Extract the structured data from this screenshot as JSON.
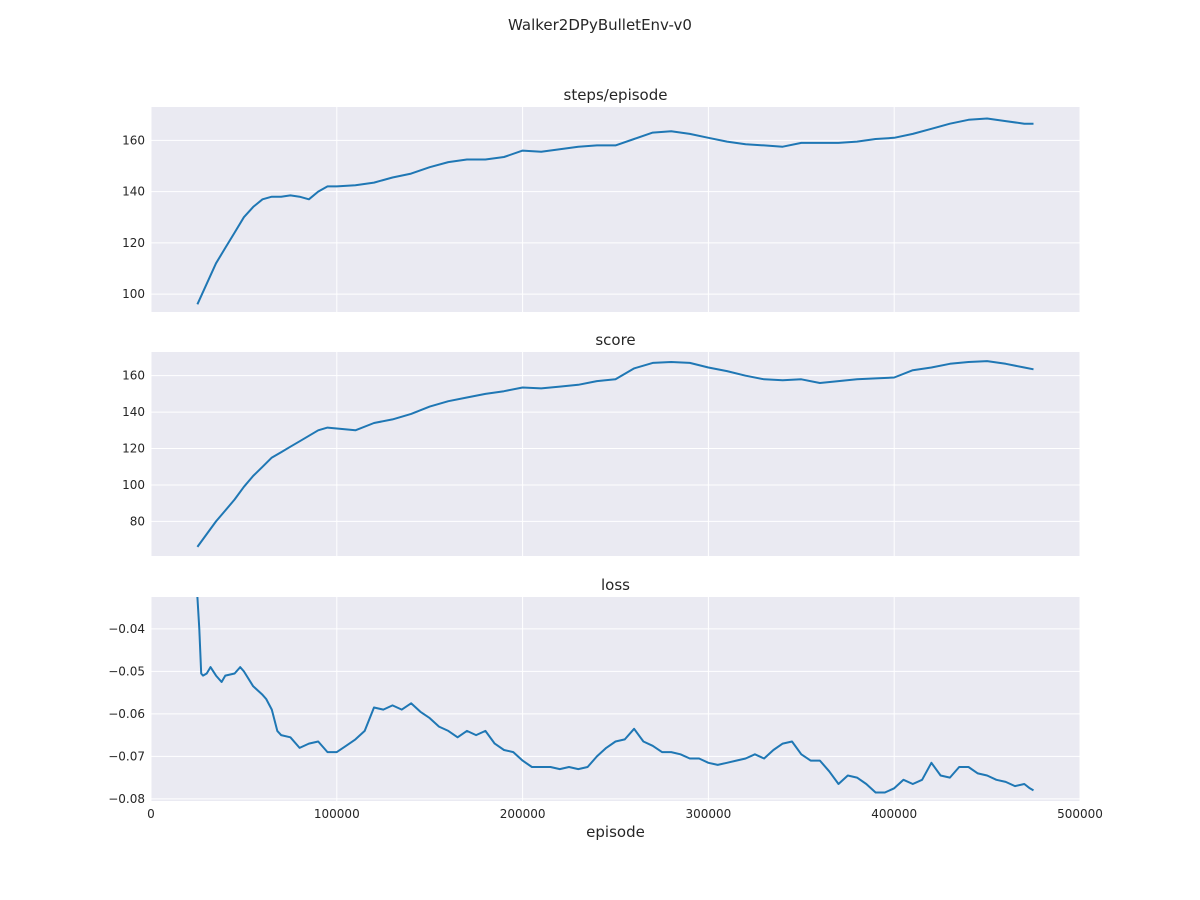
{
  "figure": {
    "title": "Walker2DPyBulletEnv-v0"
  },
  "colors": {
    "line": "#1f77b4",
    "plot_bg": "#eaeaf2",
    "grid": "#ffffff",
    "text": "#262626"
  },
  "chart_data": [
    {
      "type": "line",
      "title": "steps/episode",
      "xlabel": "",
      "ylabel": "",
      "xlim": [
        0,
        500000
      ],
      "ylim": [
        93,
        173
      ],
      "yticks": [
        100,
        120,
        140,
        160
      ],
      "ytick_labels": [
        "100",
        "120",
        "140",
        "160"
      ],
      "xtick_labels": [],
      "grid": true,
      "series": [
        {
          "x": [
            25000,
            30000,
            35000,
            40000,
            45000,
            50000,
            55000,
            60000,
            65000,
            70000,
            75000,
            80000,
            85000,
            90000,
            95000,
            100000,
            110000,
            120000,
            130000,
            140000,
            150000,
            160000,
            170000,
            180000,
            190000,
            200000,
            210000,
            220000,
            230000,
            240000,
            250000,
            260000,
            270000,
            280000,
            290000,
            300000,
            310000,
            320000,
            330000,
            340000,
            350000,
            360000,
            370000,
            380000,
            390000,
            400000,
            410000,
            420000,
            430000,
            440000,
            450000,
            460000,
            470000,
            475000
          ],
          "y": [
            96,
            104,
            112,
            118,
            124,
            130,
            134,
            137,
            138,
            138,
            138.5,
            138,
            137,
            140,
            142,
            142,
            142.5,
            143.5,
            145.5,
            147,
            149.5,
            151.5,
            152.5,
            152.5,
            153.5,
            156,
            155.5,
            156.5,
            157.5,
            158,
            158,
            160.5,
            163,
            163.5,
            162.5,
            161,
            159.5,
            158.5,
            158,
            157.5,
            159,
            159,
            159,
            159.5,
            160.5,
            161,
            162.5,
            164.5,
            166.5,
            168,
            168.5,
            167.5,
            166.5,
            166.5
          ]
        }
      ]
    },
    {
      "type": "line",
      "title": "score",
      "xlabel": "",
      "ylabel": "",
      "xlim": [
        0,
        500000
      ],
      "ylim": [
        61,
        173
      ],
      "yticks": [
        80,
        100,
        120,
        140,
        160
      ],
      "ytick_labels": [
        "80",
        "100",
        "120",
        "140",
        "160"
      ],
      "xtick_labels": [],
      "grid": true,
      "series": [
        {
          "x": [
            25000,
            30000,
            35000,
            40000,
            45000,
            50000,
            55000,
            60000,
            65000,
            70000,
            75000,
            80000,
            85000,
            90000,
            95000,
            100000,
            110000,
            120000,
            130000,
            140000,
            150000,
            160000,
            170000,
            180000,
            190000,
            200000,
            210000,
            220000,
            230000,
            240000,
            250000,
            260000,
            270000,
            280000,
            290000,
            300000,
            310000,
            320000,
            330000,
            340000,
            350000,
            360000,
            370000,
            380000,
            390000,
            400000,
            410000,
            420000,
            430000,
            440000,
            450000,
            460000,
            470000,
            475000
          ],
          "y": [
            66,
            73,
            80,
            86,
            92,
            99,
            105,
            110,
            115,
            118,
            121,
            124,
            127,
            130,
            131.5,
            131,
            130,
            134,
            136,
            139,
            143,
            146,
            148,
            150,
            151.5,
            153.5,
            153,
            154,
            155,
            157,
            158,
            164,
            167,
            167.5,
            167,
            164.5,
            162.5,
            160,
            158,
            157.5,
            158,
            156,
            157,
            158,
            158.5,
            159,
            163,
            164.5,
            166.5,
            167.5,
            168,
            166.5,
            164.5,
            163.5
          ]
        }
      ]
    },
    {
      "type": "line",
      "title": "loss",
      "xlabel": "episode",
      "ylabel": "",
      "xlim": [
        0,
        500000
      ],
      "ylim": [
        -0.0805,
        -0.0325
      ],
      "yticks": [
        -0.08,
        -0.07,
        -0.06,
        -0.05,
        -0.04
      ],
      "ytick_labels": [
        "−0.08",
        "−0.07",
        "−0.06",
        "−0.05",
        "−0.04"
      ],
      "xticks": [
        0,
        100000,
        200000,
        300000,
        400000,
        500000
      ],
      "xtick_labels": [
        "0",
        "100000",
        "200000",
        "300000",
        "400000",
        "500000"
      ],
      "grid": true,
      "series": [
        {
          "x": [
            25000,
            26000,
            27000,
            28000,
            30000,
            32000,
            35000,
            38000,
            40000,
            45000,
            48000,
            50000,
            55000,
            60000,
            62000,
            65000,
            68000,
            70000,
            75000,
            80000,
            85000,
            90000,
            95000,
            100000,
            105000,
            110000,
            115000,
            120000,
            125000,
            130000,
            135000,
            140000,
            145000,
            150000,
            155000,
            160000,
            165000,
            170000,
            175000,
            180000,
            185000,
            190000,
            195000,
            200000,
            205000,
            210000,
            215000,
            220000,
            225000,
            230000,
            235000,
            240000,
            245000,
            250000,
            255000,
            260000,
            265000,
            270000,
            275000,
            280000,
            285000,
            290000,
            295000,
            300000,
            305000,
            310000,
            315000,
            320000,
            325000,
            330000,
            335000,
            340000,
            345000,
            350000,
            355000,
            360000,
            365000,
            370000,
            375000,
            380000,
            385000,
            390000,
            395000,
            400000,
            405000,
            410000,
            415000,
            420000,
            425000,
            430000,
            435000,
            440000,
            445000,
            450000,
            455000,
            460000,
            465000,
            470000,
            473000,
            475000
          ],
          "y": [
            -0.0325,
            -0.04,
            -0.0505,
            -0.051,
            -0.0505,
            -0.049,
            -0.051,
            -0.0525,
            -0.051,
            -0.0505,
            -0.049,
            -0.05,
            -0.0535,
            -0.0555,
            -0.0565,
            -0.059,
            -0.064,
            -0.065,
            -0.0655,
            -0.068,
            -0.067,
            -0.0665,
            -0.069,
            -0.069,
            -0.0675,
            -0.066,
            -0.064,
            -0.0585,
            -0.059,
            -0.058,
            -0.059,
            -0.0575,
            -0.0595,
            -0.061,
            -0.063,
            -0.064,
            -0.0655,
            -0.064,
            -0.065,
            -0.064,
            -0.067,
            -0.0685,
            -0.069,
            -0.071,
            -0.0725,
            -0.0725,
            -0.0725,
            -0.073,
            -0.0725,
            -0.073,
            -0.0725,
            -0.07,
            -0.068,
            -0.0665,
            -0.066,
            -0.0635,
            -0.0665,
            -0.0675,
            -0.069,
            -0.069,
            -0.0695,
            -0.0705,
            -0.0705,
            -0.0715,
            -0.072,
            -0.0715,
            -0.071,
            -0.0705,
            -0.0695,
            -0.0705,
            -0.0685,
            -0.067,
            -0.0665,
            -0.0695,
            -0.071,
            -0.071,
            -0.0735,
            -0.0765,
            -0.0745,
            -0.075,
            -0.0765,
            -0.0785,
            -0.0785,
            -0.0775,
            -0.0755,
            -0.0765,
            -0.0755,
            -0.0715,
            -0.0745,
            -0.075,
            -0.0725,
            -0.0725,
            -0.074,
            -0.0745,
            -0.0755,
            -0.076,
            -0.077,
            -0.0765,
            -0.0775,
            -0.078
          ]
        }
      ]
    }
  ]
}
